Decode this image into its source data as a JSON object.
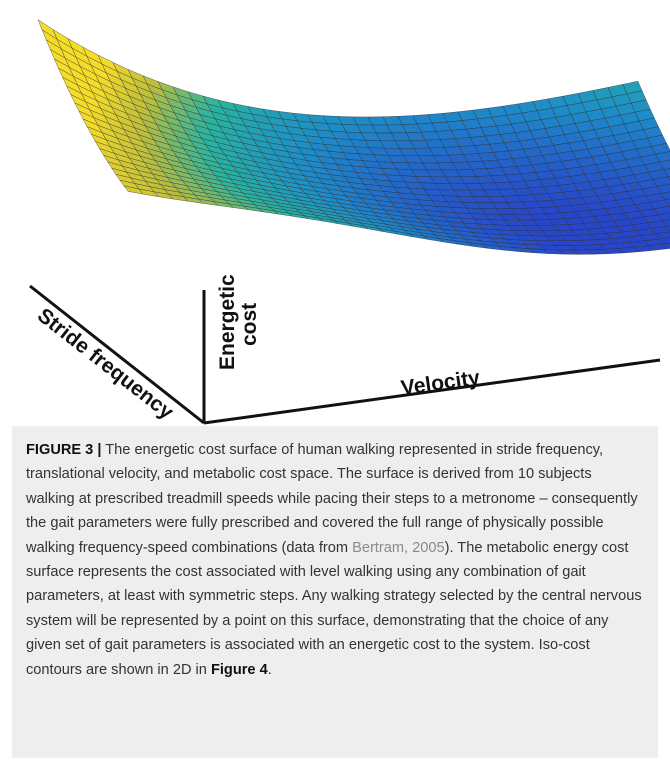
{
  "figure": {
    "axes": {
      "stride_frequency": "Stride frequency",
      "energetic_cost": [
        "Energetic",
        "cost"
      ],
      "velocity": "Velocity"
    }
  },
  "caption": {
    "label": "FIGURE 3 |",
    "text_before_citation": " The energetic cost surface of human walking represented in stride frequency, translational velocity, and metabolic cost space. The surface is derived from 10 subjects walking at prescribed treadmill speeds while pacing their steps to a metronome – consequently the gait parameters were fully prescribed and covered the full range of physically possible walking frequency-speed combinations (data from ",
    "citation": "Bertram, 2005",
    "text_between": "). The metabolic energy cost surface represents the cost associated with level walking using any combination of gait parameters, at least with symmetric steps. Any walking strategy selected by the central nervous system will be represented by a point on this surface, demonstrating that the choice of any given set of gait parameters is associated with an energetic cost to the system. Iso-cost contours are shown in 2D in ",
    "figure_ref": "Figure 4",
    "end": "."
  }
}
